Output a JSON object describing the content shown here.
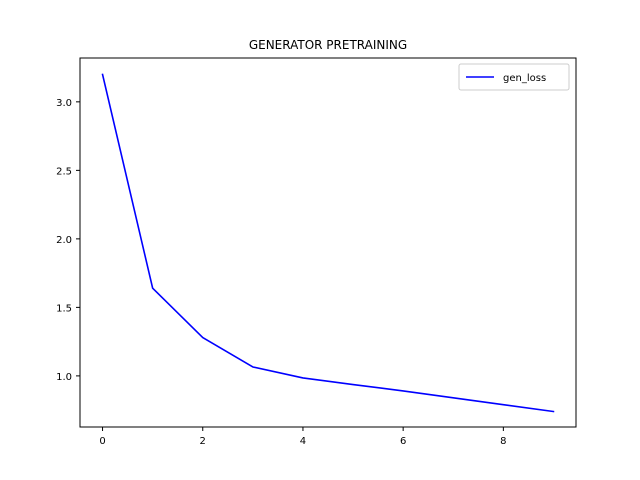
{
  "chart_data": {
    "type": "line",
    "title": "GENERATOR PRETRAINING",
    "xlabel": "",
    "ylabel": "",
    "xlim": [
      -0.45,
      9.45
    ],
    "ylim": [
      0.627,
      3.32
    ],
    "xticks": [
      0,
      2,
      4,
      6,
      8
    ],
    "yticks": [
      1.0,
      1.5,
      2.0,
      2.5,
      3.0
    ],
    "xtick_labels": [
      "0",
      "2",
      "4",
      "6",
      "8"
    ],
    "ytick_labels": [
      "1.0",
      "1.5",
      "2.0",
      "2.5",
      "3.0"
    ],
    "grid": false,
    "legend_position": "top-right",
    "series": [
      {
        "name": "gen_loss",
        "color": "#0000ff",
        "x": [
          0,
          1,
          2,
          3,
          4,
          5,
          6,
          7,
          8,
          9
        ],
        "y": [
          3.2,
          1.64,
          1.28,
          1.065,
          0.985,
          0.937,
          0.89,
          0.84,
          0.79,
          0.74
        ]
      }
    ]
  }
}
